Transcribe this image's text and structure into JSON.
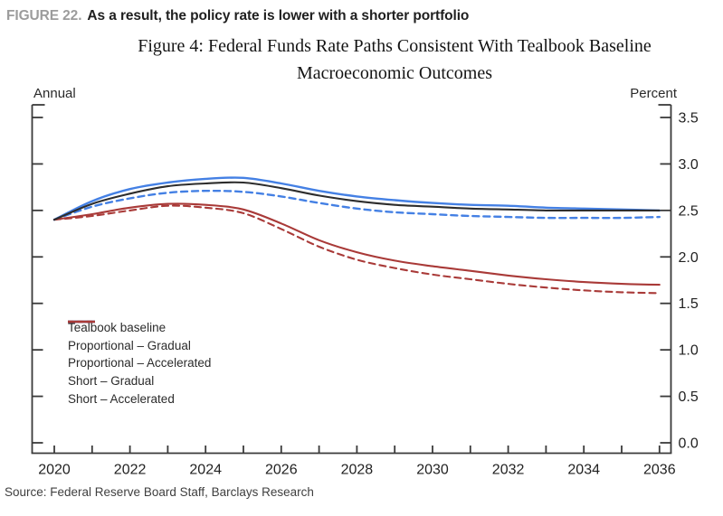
{
  "header": {
    "figure_label": "FIGURE 22.",
    "figure_title": "As a result, the policy rate is lower with a shorter portfolio"
  },
  "title": {
    "line1": "Figure 4: Federal Funds Rate Paths Consistent With Tealbook Baseline",
    "line2": "Macroeconomic Outcomes"
  },
  "axis_units": {
    "left": "Annual",
    "right": "Percent"
  },
  "source": "Source: Federal Reserve Board Staff, Barclays Research",
  "colors": {
    "black": "#2d2d2d",
    "blue": "#4480e4",
    "red": "#a93a38",
    "axis": "#3a3a3a",
    "tick_label": "#222222",
    "figure_label_gray": "#9c9c9c"
  },
  "chart_data": {
    "type": "line",
    "title": "Figure 4: Federal Funds Rate Paths Consistent With Tealbook Baseline Macroeconomic Outcomes",
    "x_unit": "Annual",
    "y_unit": "Percent",
    "x": [
      2020,
      2021,
      2022,
      2023,
      2024,
      2025,
      2026,
      2027,
      2028,
      2029,
      2030,
      2031,
      2032,
      2033,
      2034,
      2035,
      2036
    ],
    "x_tick_labels": [
      "2020",
      "2022",
      "2024",
      "2026",
      "2028",
      "2030",
      "2032",
      "2034",
      "2036"
    ],
    "xlim": [
      2020,
      2036
    ],
    "ylim": [
      0.0,
      3.5
    ],
    "y_ticks": [
      {
        "value": 0.0,
        "label": "0.0"
      },
      {
        "value": 0.5,
        "label": "0.5"
      },
      {
        "value": 1.0,
        "label": "1.0"
      },
      {
        "value": 1.5,
        "label": "1.5"
      },
      {
        "value": 2.0,
        "label": "2.0"
      },
      {
        "value": 2.5,
        "label": "2.5"
      },
      {
        "value": 3.0,
        "label": "3.0"
      },
      {
        "value": 3.5,
        "label": "3.5"
      }
    ],
    "grid": false,
    "legend_position": "lower-left",
    "series": [
      {
        "name": "Tealbook baseline",
        "color": "black",
        "dash": false,
        "values": [
          2.4,
          2.57,
          2.68,
          2.76,
          2.79,
          2.8,
          2.74,
          2.66,
          2.6,
          2.56,
          2.54,
          2.52,
          2.51,
          2.5,
          2.5,
          2.5,
          2.5
        ]
      },
      {
        "name": "Proportional – Gradual",
        "color": "blue",
        "dash": false,
        "values": [
          2.4,
          2.6,
          2.73,
          2.8,
          2.84,
          2.85,
          2.79,
          2.71,
          2.65,
          2.61,
          2.58,
          2.56,
          2.55,
          2.53,
          2.52,
          2.51,
          2.5
        ]
      },
      {
        "name": "Proportional – Accelerated",
        "color": "blue",
        "dash": true,
        "values": [
          2.4,
          2.54,
          2.63,
          2.69,
          2.71,
          2.7,
          2.65,
          2.58,
          2.52,
          2.48,
          2.46,
          2.44,
          2.43,
          2.42,
          2.42,
          2.42,
          2.43
        ]
      },
      {
        "name": "Short – Gradual",
        "color": "red",
        "dash": false,
        "values": [
          2.4,
          2.46,
          2.53,
          2.57,
          2.56,
          2.51,
          2.36,
          2.18,
          2.05,
          1.96,
          1.9,
          1.85,
          1.8,
          1.76,
          1.73,
          1.71,
          1.7
        ]
      },
      {
        "name": "Short – Accelerated",
        "color": "red",
        "dash": true,
        "values": [
          2.4,
          2.44,
          2.5,
          2.55,
          2.53,
          2.47,
          2.3,
          2.11,
          1.97,
          1.88,
          1.81,
          1.76,
          1.71,
          1.67,
          1.64,
          1.62,
          1.61
        ]
      }
    ]
  }
}
